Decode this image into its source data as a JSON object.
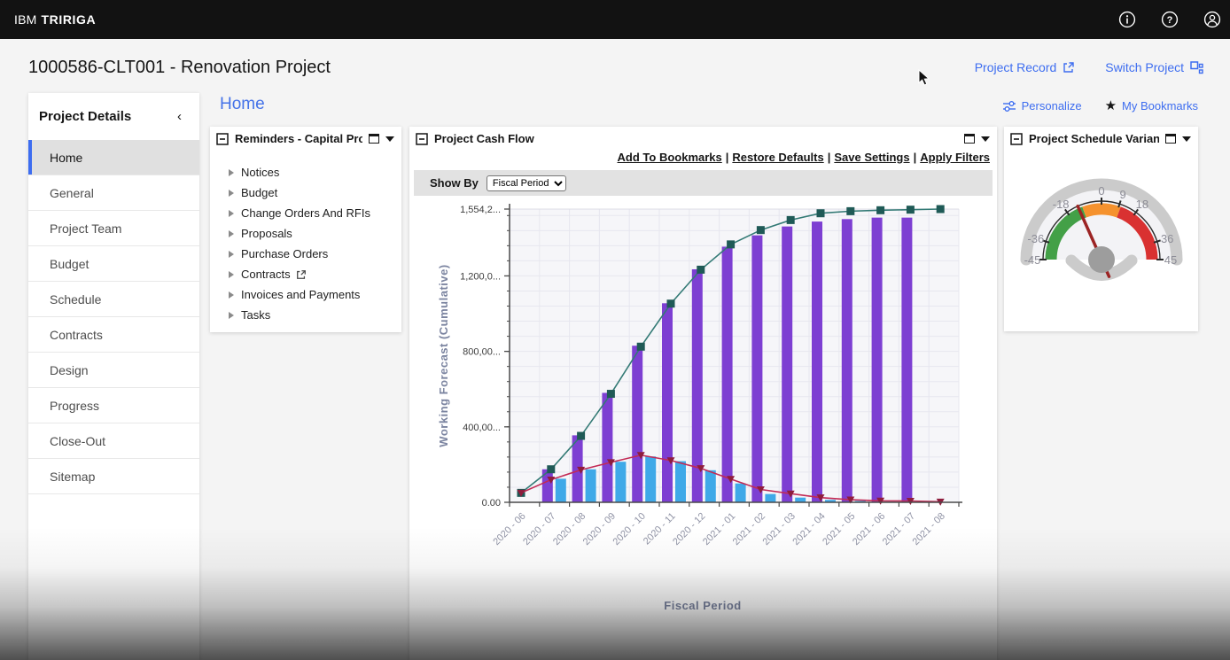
{
  "topbar": {
    "brand_prefix": "IBM",
    "brand_name": "TRIRIGA"
  },
  "titlebar": {
    "title": "1000586-CLT001 - Renovation Project",
    "project_record": "Project Record",
    "switch_project": "Switch Project"
  },
  "toolbar": {
    "personalize": "Personalize",
    "my_bookmarks": "My Bookmarks"
  },
  "page_heading": "Home",
  "sidebar": {
    "title": "Project Details",
    "collapse_glyph": "‹",
    "active_index": 0,
    "items": [
      "Home",
      "General",
      "Project Team",
      "Budget",
      "Schedule",
      "Contracts",
      "Design",
      "Progress",
      "Close-Out",
      "Sitemap"
    ]
  },
  "reminders": {
    "title": "Reminders - Capital Proj...",
    "items": [
      {
        "label": "Notices",
        "external": false
      },
      {
        "label": "Budget",
        "external": false
      },
      {
        "label": "Change Orders And RFIs",
        "external": false
      },
      {
        "label": "Proposals",
        "external": false
      },
      {
        "label": "Purchase Orders",
        "external": false
      },
      {
        "label": "Contracts",
        "external": true
      },
      {
        "label": "Invoices and Payments",
        "external": false
      },
      {
        "label": "Tasks",
        "external": false
      }
    ]
  },
  "cashflow": {
    "title": "Project Cash Flow",
    "links": [
      "Add To Bookmarks",
      "Restore Defaults",
      "Save Settings",
      "Apply Filters"
    ],
    "show_by_label": "Show By",
    "show_by_value": "Fiscal Period"
  },
  "variance": {
    "title": "Project Schedule Variance"
  },
  "colors": {
    "accent_blue": "#3d6df0",
    "bar_purple": "#7d3fd2",
    "bar_blue": "#3fa9e8",
    "line_teal": "#337a75",
    "marker_teal": "#1f5a56",
    "line_red": "#c22a55",
    "marker_red": "#8e1d3d",
    "gauge_green": "#43a047",
    "gauge_orange": "#f5922e",
    "gauge_red": "#d93131"
  },
  "chart_data": [
    {
      "type": "bar",
      "subtype": "combo bar+line",
      "title": "Project Cash Flow",
      "xlabel": "Fiscal Period",
      "ylabel": "Working Forecast (Cumulative)",
      "ylim": [
        0,
        1554200
      ],
      "minor_tick": 80000,
      "grid": true,
      "legend": "none",
      "ytick_values": [
        0,
        400000,
        800000,
        1200000,
        1554200
      ],
      "ytick_labels": [
        "0.00",
        "400,00...",
        "800,00...",
        "1,200,0...",
        "1,554,2..."
      ],
      "categories": [
        "2020 - 06",
        "2020 - 07",
        "2020 - 08",
        "2020 - 09",
        "2020 - 10",
        "2020 - 11",
        "2020 - 12",
        "2021 - 01",
        "2021 - 02",
        "2021 - 03",
        "2021 - 04",
        "2021 - 05",
        "2021 - 06",
        "2021 - 07",
        "2021 - 08"
      ],
      "series": [
        {
          "name": "cumulative-bars",
          "type": "bar",
          "color": "#7d3fd2",
          "values": [
            null,
            175000,
            355000,
            580000,
            830000,
            1055000,
            1235000,
            1355000,
            1415000,
            1462000,
            1488000,
            1501000,
            1509000,
            1509000,
            null
          ]
        },
        {
          "name": "monthly-bars",
          "type": "bar",
          "color": "#3fa9e8",
          "values": [
            null,
            125000,
            175000,
            215000,
            243000,
            218000,
            170000,
            100000,
            44000,
            25000,
            13000,
            7000,
            3000,
            null,
            null
          ]
        },
        {
          "name": "cumulative-line",
          "type": "line",
          "color": "#337a75",
          "marker": "square",
          "marker_color": "#1f5a56",
          "values": [
            50000,
            175000,
            352000,
            575000,
            825000,
            1053000,
            1233000,
            1367000,
            1443000,
            1496000,
            1532000,
            1543000,
            1548000,
            1551000,
            1554200
          ]
        },
        {
          "name": "monthly-line",
          "type": "line",
          "color": "#c22a55",
          "marker": "triangle-down",
          "marker_color": "#8e1d3d",
          "values": [
            50000,
            120000,
            172000,
            212000,
            250000,
            222000,
            180000,
            123000,
            68000,
            46000,
            25000,
            14000,
            8000,
            7000,
            3000
          ]
        }
      ]
    },
    {
      "type": "gauge",
      "title": "Project Schedule Variance",
      "min": -45,
      "max": 45,
      "tick_values": [
        -45,
        -36,
        -18,
        0,
        9,
        18,
        36,
        45
      ],
      "zones": [
        {
          "from": -45,
          "to": -10,
          "color": "#43a047"
        },
        {
          "from": -10,
          "to": 10,
          "color": "#f5922e"
        },
        {
          "from": 10,
          "to": 45,
          "color": "#d93131"
        }
      ],
      "needle_value": -12
    }
  ]
}
